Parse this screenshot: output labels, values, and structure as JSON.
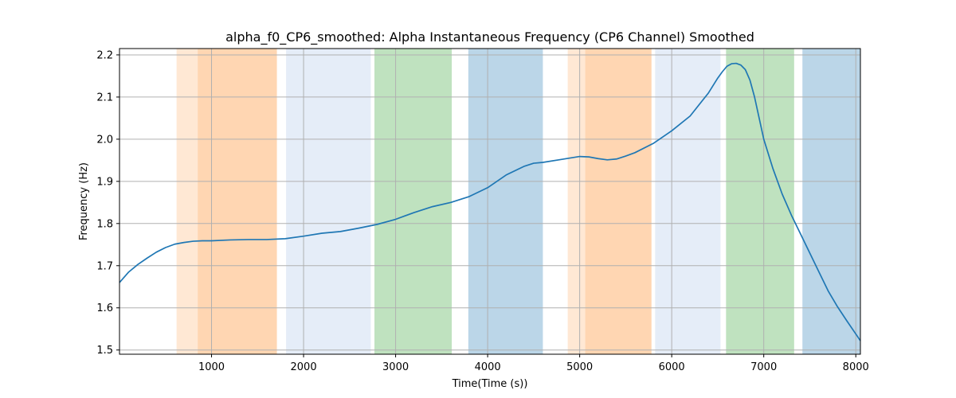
{
  "chart_data": {
    "type": "line",
    "title": "alpha_f0_CP6_smoothed: Alpha Instantaneous Frequency (CP6 Channel) Smoothed",
    "xlabel": "Time(Time (s))",
    "ylabel": "Frequency (Hz)",
    "xlim": [
      0,
      8050
    ],
    "ylim": [
      1.49,
      2.215
    ],
    "x_ticks": [
      1000,
      2000,
      3000,
      4000,
      5000,
      6000,
      7000,
      8000
    ],
    "y_ticks": [
      1.5,
      1.6,
      1.7,
      1.8,
      1.9,
      2.0,
      2.1,
      2.2
    ],
    "x_tick_labels": [
      "1000",
      "2000",
      "3000",
      "4000",
      "5000",
      "6000",
      "7000",
      "8000"
    ],
    "y_tick_labels": [
      "1.5",
      "1.6",
      "1.7",
      "1.8",
      "1.9",
      "2.0",
      "2.1",
      "2.2"
    ],
    "grid": true,
    "shaded_regions": [
      {
        "x0": 620,
        "x1": 850,
        "color": "#ff7f0e",
        "opacity": 0.18
      },
      {
        "x0": 850,
        "x1": 1710,
        "color": "#ff7f0e",
        "opacity": 0.32
      },
      {
        "x0": 1810,
        "x1": 2730,
        "color": "#aec7e8",
        "opacity": 0.32
      },
      {
        "x0": 2770,
        "x1": 3610,
        "color": "#2ca02c",
        "opacity": 0.3
      },
      {
        "x0": 3790,
        "x1": 4600,
        "color": "#1f77b4",
        "opacity": 0.3
      },
      {
        "x0": 4870,
        "x1": 5060,
        "color": "#ff7f0e",
        "opacity": 0.18
      },
      {
        "x0": 5060,
        "x1": 5780,
        "color": "#ff7f0e",
        "opacity": 0.32
      },
      {
        "x0": 5820,
        "x1": 6530,
        "color": "#aec7e8",
        "opacity": 0.32
      },
      {
        "x0": 6590,
        "x1": 7330,
        "color": "#2ca02c",
        "opacity": 0.3
      },
      {
        "x0": 7420,
        "x1": 8050,
        "color": "#1f77b4",
        "opacity": 0.3
      }
    ],
    "series": [
      {
        "color": "#1f77b4",
        "x": [
          0,
          100,
          200,
          300,
          400,
          500,
          600,
          700,
          800,
          900,
          1000,
          1200,
          1400,
          1600,
          1800,
          2000,
          2200,
          2400,
          2600,
          2800,
          3000,
          3200,
          3400,
          3600,
          3800,
          4000,
          4200,
          4400,
          4500,
          4600,
          4800,
          5000,
          5100,
          5200,
          5300,
          5400,
          5500,
          5600,
          5800,
          6000,
          6200,
          6400,
          6500,
          6550,
          6600,
          6650,
          6700,
          6750,
          6800,
          6850,
          6900,
          7000,
          7100,
          7200,
          7300,
          7400,
          7500,
          7600,
          7700,
          7800,
          7900,
          8000,
          8050
        ],
        "y": [
          1.66,
          1.685,
          1.703,
          1.718,
          1.732,
          1.743,
          1.751,
          1.755,
          1.758,
          1.759,
          1.759,
          1.761,
          1.762,
          1.762,
          1.764,
          1.77,
          1.777,
          1.781,
          1.789,
          1.798,
          1.81,
          1.826,
          1.84,
          1.85,
          1.864,
          1.885,
          1.915,
          1.936,
          1.943,
          1.945,
          1.952,
          1.959,
          1.958,
          1.954,
          1.951,
          1.953,
          1.96,
          1.968,
          1.99,
          2.02,
          2.055,
          2.11,
          2.145,
          2.16,
          2.173,
          2.179,
          2.18,
          2.176,
          2.165,
          2.14,
          2.1,
          2.0,
          1.93,
          1.87,
          1.82,
          1.775,
          1.73,
          1.685,
          1.64,
          1.603,
          1.57,
          1.538,
          1.522
        ]
      }
    ]
  }
}
